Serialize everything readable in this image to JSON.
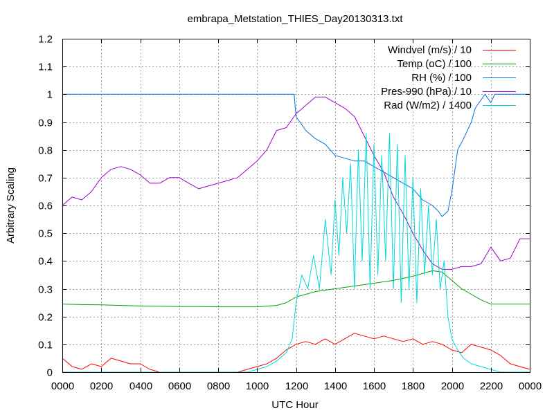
{
  "chart_data": {
    "type": "line",
    "title": "embrapa_Metstation_THIES_Day20130313.txt",
    "xlabel": "UTC Hour",
    "ylabel": "Arbitrary Scaling",
    "xlim": [
      0,
      24
    ],
    "ylim": [
      0,
      1.2
    ],
    "grid": true,
    "legend_position": "top-right",
    "x_tick_labels": [
      "0000",
      "0200",
      "0400",
      "0600",
      "0800",
      "1000",
      "1200",
      "1400",
      "1600",
      "1800",
      "2000",
      "2200",
      "0000"
    ],
    "y_tick_labels": [
      "0",
      "0.1",
      "0.2",
      "0.3",
      "0.4",
      "0.5",
      "0.6",
      "0.7",
      "0.8",
      "0.9",
      "1",
      "1.1",
      "1.2"
    ],
    "series": [
      {
        "name": "Windvel (m/s) / 10",
        "color": "#ff0000",
        "x": [
          0,
          0.5,
          1,
          1.5,
          2,
          2.5,
          3,
          3.5,
          4,
          4.5,
          5,
          5.5,
          6,
          6.5,
          7,
          7.5,
          8,
          8.5,
          9,
          9.5,
          10,
          10.5,
          11,
          11.5,
          12,
          12.5,
          13,
          13.5,
          14,
          14.5,
          15,
          15.5,
          16,
          16.5,
          17,
          17.5,
          18,
          18.5,
          19,
          19.5,
          20,
          20.5,
          21,
          21.5,
          22,
          22.5,
          23,
          23.5,
          24
        ],
        "y": [
          0.05,
          0.02,
          0.01,
          0.03,
          0.02,
          0.05,
          0.04,
          0.03,
          0.03,
          0.01,
          0,
          0,
          0,
          0,
          0,
          0,
          0,
          0,
          0,
          0.01,
          0.02,
          0.03,
          0.05,
          0.08,
          0.1,
          0.11,
          0.1,
          0.12,
          0.1,
          0.12,
          0.14,
          0.13,
          0.12,
          0.13,
          0.12,
          0.11,
          0.12,
          0.1,
          0.11,
          0.1,
          0.08,
          0.07,
          0.1,
          0.09,
          0.08,
          0.06,
          0.03,
          0.02,
          0.01
        ]
      },
      {
        "name": "Temp (oC) / 100",
        "color": "#00a000",
        "x": [
          0,
          1,
          2,
          3,
          4,
          5,
          6,
          7,
          8,
          9,
          10,
          11,
          11.5,
          12,
          12.5,
          13,
          14,
          15,
          16,
          17,
          18,
          18.5,
          19,
          19.5,
          20,
          20.5,
          21,
          21.5,
          22,
          23,
          24
        ],
        "y": [
          0.245,
          0.243,
          0.242,
          0.24,
          0.238,
          0.237,
          0.236,
          0.236,
          0.235,
          0.235,
          0.235,
          0.24,
          0.25,
          0.27,
          0.28,
          0.29,
          0.3,
          0.31,
          0.32,
          0.33,
          0.345,
          0.355,
          0.365,
          0.36,
          0.33,
          0.3,
          0.28,
          0.26,
          0.245,
          0.245,
          0.245
        ]
      },
      {
        "name": "RH (%) / 100",
        "color": "#0070e0",
        "x": [
          0,
          2,
          4,
          6,
          8,
          10,
          11.9,
          12,
          12.5,
          13,
          13.5,
          14,
          14.5,
          15,
          15.5,
          16,
          16.5,
          17,
          17.5,
          18,
          18.5,
          19,
          19.3,
          19.5,
          19.8,
          20,
          20.3,
          20.6,
          21,
          21.2,
          21.5,
          21.7,
          22,
          22.2,
          23,
          24
        ],
        "y": [
          1,
          1,
          1,
          1,
          1,
          1,
          1,
          0.92,
          0.87,
          0.84,
          0.82,
          0.78,
          0.77,
          0.76,
          0.76,
          0.74,
          0.72,
          0.7,
          0.68,
          0.66,
          0.62,
          0.6,
          0.58,
          0.56,
          0.58,
          0.65,
          0.8,
          0.84,
          0.9,
          0.95,
          0.98,
          1,
          0.97,
          1,
          1,
          1
        ]
      },
      {
        "name": "Pres-990 (hPa) / 10",
        "color": "#9900cc",
        "x": [
          0,
          0.5,
          1,
          1.5,
          2,
          2.5,
          3,
          3.5,
          4,
          4.5,
          5,
          5.5,
          6,
          6.5,
          7,
          7.5,
          8,
          8.5,
          9,
          9.5,
          10,
          10.5,
          11,
          11.5,
          12,
          12.5,
          13,
          13.5,
          14,
          14.5,
          15,
          15.5,
          16,
          16.5,
          17,
          17.5,
          18,
          18.5,
          19,
          19.5,
          20,
          20.5,
          21,
          21.5,
          22,
          22.5,
          23,
          23.5,
          24
        ],
        "y": [
          0.6,
          0.63,
          0.62,
          0.65,
          0.7,
          0.73,
          0.74,
          0.73,
          0.71,
          0.68,
          0.68,
          0.7,
          0.7,
          0.68,
          0.66,
          0.67,
          0.68,
          0.69,
          0.7,
          0.73,
          0.76,
          0.8,
          0.87,
          0.88,
          0.93,
          0.96,
          0.99,
          0.99,
          0.97,
          0.95,
          0.92,
          0.85,
          0.78,
          0.72,
          0.63,
          0.57,
          0.5,
          0.44,
          0.39,
          0.37,
          0.37,
          0.38,
          0.38,
          0.39,
          0.45,
          0.4,
          0.41,
          0.48,
          0.48
        ]
      },
      {
        "name": "Rad (W/m2) / 1400",
        "color": "#00d8d8",
        "x": [
          0,
          2,
          4,
          6,
          8,
          9.5,
          10,
          10.5,
          11,
          11.5,
          11.8,
          12,
          12.3,
          12.6,
          12.9,
          13.2,
          13.5,
          13.8,
          14,
          14.2,
          14.4,
          14.6,
          14.8,
          15,
          15.2,
          15.4,
          15.6,
          15.8,
          16,
          16.2,
          16.4,
          16.6,
          16.8,
          17,
          17.2,
          17.4,
          17.6,
          17.8,
          18,
          18.2,
          18.4,
          18.6,
          18.8,
          19,
          19.2,
          19.4,
          19.6,
          19.8,
          20,
          20.3,
          20.6,
          21,
          21.5,
          22,
          22.5,
          23,
          24
        ],
        "y": [
          0,
          0,
          0,
          0,
          0,
          0,
          0.01,
          0.02,
          0.04,
          0.07,
          0.12,
          0.25,
          0.35,
          0.3,
          0.42,
          0.3,
          0.55,
          0.35,
          0.62,
          0.42,
          0.7,
          0.5,
          0.75,
          0.3,
          0.8,
          0.4,
          0.86,
          0.3,
          0.82,
          0.35,
          0.78,
          0.4,
          0.86,
          0.3,
          0.82,
          0.25,
          0.78,
          0.3,
          0.7,
          0.25,
          0.66,
          0.35,
          0.6,
          0.35,
          0.55,
          0.3,
          0.4,
          0.2,
          0.12,
          0.08,
          0.05,
          0.03,
          0.02,
          0.01,
          0,
          0,
          0
        ]
      }
    ]
  }
}
